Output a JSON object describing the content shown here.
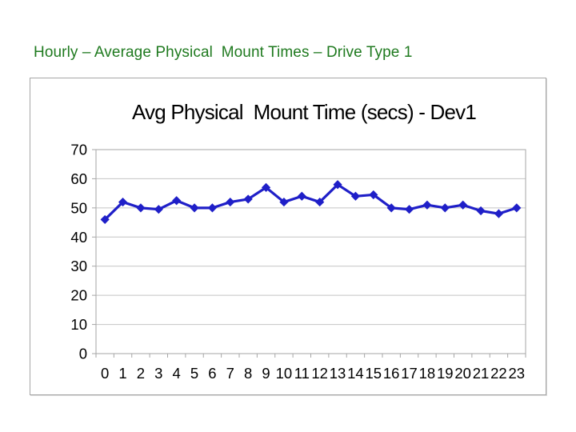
{
  "page": {
    "title": "Hourly – Average Physical  Mount Times – Drive Type 1",
    "title_color": "#1f7a1f",
    "background": "#ffffff"
  },
  "chart_data": {
    "type": "line",
    "title": "Avg Physical  Mount Time (secs) - Dev1",
    "x_categories": [
      "0",
      "1",
      "2",
      "3",
      "4",
      "5",
      "6",
      "7",
      "8",
      "9",
      "10",
      "11",
      "12",
      "13",
      "14",
      "15",
      "16",
      "17",
      "18",
      "19",
      "20",
      "21",
      "22",
      "23"
    ],
    "series": [
      {
        "name": "Dev1",
        "values": [
          46,
          52,
          50,
          49.5,
          52.5,
          50,
          50,
          52,
          53,
          57,
          52,
          54,
          52,
          58,
          54,
          54.5,
          50,
          49.5,
          51,
          50,
          51,
          49,
          48,
          50
        ]
      }
    ],
    "xlabel": "",
    "ylabel": "",
    "ylim": [
      0,
      70
    ],
    "ytick_step": 10,
    "grid": "horizontal",
    "legend": "none",
    "marker": "diamond",
    "colors": {
      "line": "#1f1fc8",
      "marker": "#1f1fc8",
      "gridline": "#c4c4c4",
      "axis": "#a6a6a6",
      "text": "#000000",
      "panel_border": "#a6a6a6"
    }
  }
}
